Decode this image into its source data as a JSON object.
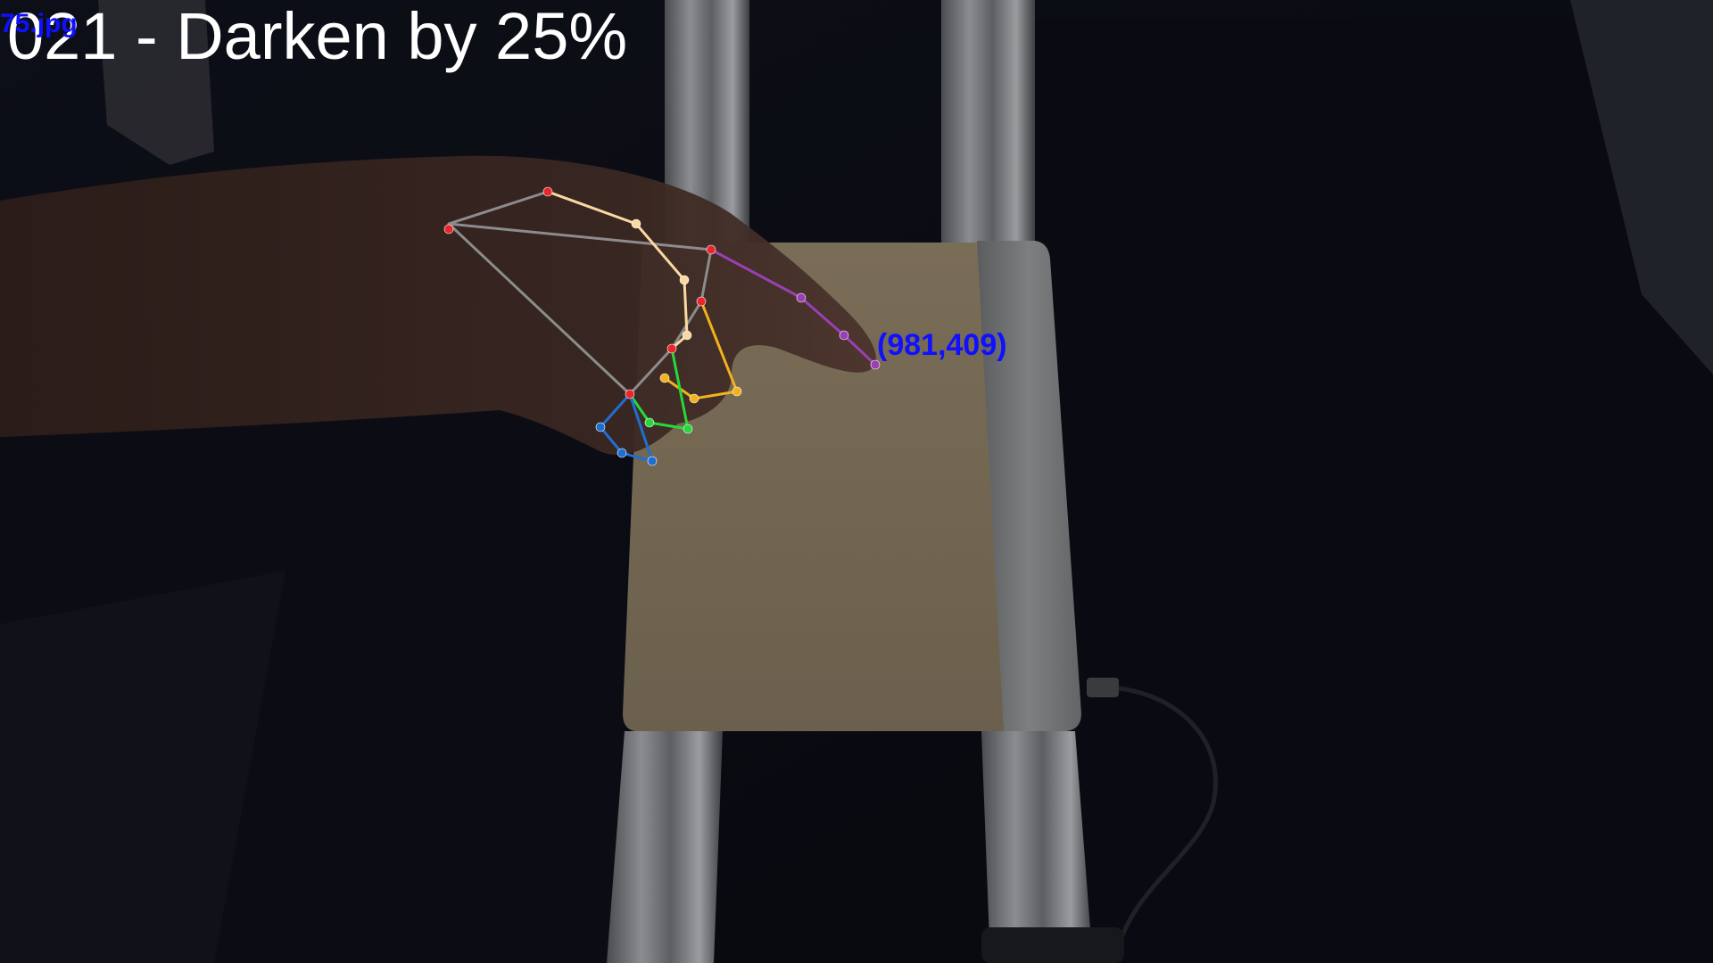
{
  "overlay": {
    "title": "021 - Darken by 25%",
    "filename": "75.jpg",
    "fingertip_coordinate": "(981,409)"
  },
  "colors": {
    "title_text": "#ffffff",
    "label_text": "#1010ff",
    "joint_marker": "#e8262b",
    "palm_lines": "#8c8c8c",
    "thumb": "#f9d9a2",
    "index_finger": "#9a3fb5",
    "middle_finger": "#f3b21c",
    "ring_finger": "#27d83b",
    "pinky_finger": "#1f6fd1"
  },
  "scene": {
    "description_icon": "hand-landmark-overlay"
  }
}
